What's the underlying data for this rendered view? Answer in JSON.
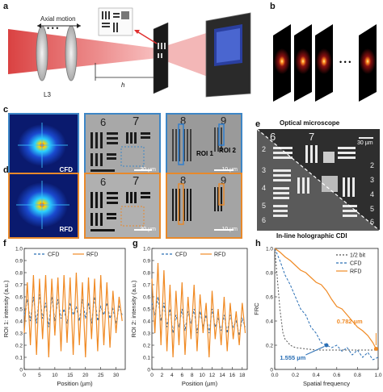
{
  "panels": {
    "a": "a",
    "b": "b",
    "c": "c",
    "d": "d",
    "e": "e",
    "f": "f",
    "g": "g",
    "h": "h"
  },
  "panel_a": {
    "axial_motion": "Axial motion",
    "lens": "L3",
    "h_label": "h"
  },
  "panel_b": {
    "ellipsis": "• • •"
  },
  "panel_c": {
    "label": "CFD",
    "group_6": "6",
    "group_7": "7",
    "group_8": "8",
    "group_9": "9",
    "roi1": "ROI 1",
    "roi2": "ROI 2",
    "scale": "30 µm",
    "scale2": "10 µm"
  },
  "panel_d": {
    "label": "RFD",
    "group_6": "6",
    "group_7": "7",
    "group_8": "8",
    "group_9": "9",
    "scale": "30 µm",
    "scale2": "10 µm"
  },
  "panel_e": {
    "top_title": "Optical microscope",
    "bottom_title": "In-line holographic CDI",
    "scale": "30 µm",
    "g6": "6",
    "g7": "7",
    "n2": "2",
    "n3": "3",
    "n4": "4",
    "n5": "5",
    "n6": "6",
    "r2": "2",
    "r3": "3",
    "r4": "4",
    "r5": "5",
    "r6": "6"
  },
  "chart_data": [
    {
      "type": "line",
      "panel": "f",
      "xlabel": "Position (µm)",
      "ylabel": "ROI 1: intensity (a.u.)",
      "xlim": [
        0,
        33
      ],
      "ylim": [
        0,
        1.0
      ],
      "xticks": [
        "0",
        "5",
        "10",
        "15",
        "20",
        "25",
        "30"
      ],
      "yticks": [
        "0",
        "0.1",
        "0.2",
        "0.3",
        "0.4",
        "0.5",
        "0.6",
        "0.7",
        "0.8",
        "0.9",
        "1.0"
      ],
      "legend": [
        "CFD",
        "RFD"
      ],
      "series": [
        {
          "name": "CFD",
          "x": [
            0,
            1,
            2,
            3,
            4,
            5,
            6,
            7,
            8,
            9,
            10,
            11,
            12,
            13,
            14,
            15,
            16,
            17,
            18,
            19,
            20,
            21,
            22,
            23,
            24,
            25,
            26,
            27,
            28,
            29,
            30,
            31,
            32
          ],
          "values": [
            0.45,
            0.58,
            0.4,
            0.6,
            0.38,
            0.62,
            0.42,
            0.55,
            0.35,
            0.6,
            0.4,
            0.58,
            0.42,
            0.5,
            0.38,
            0.55,
            0.45,
            0.52,
            0.4,
            0.58,
            0.42,
            0.55,
            0.38,
            0.6,
            0.4,
            0.52,
            0.45,
            0.55,
            0.42,
            0.5,
            0.38,
            0.52,
            0.45
          ]
        },
        {
          "name": "RFD",
          "x": [
            0,
            1,
            2,
            3,
            4,
            5,
            6,
            7,
            8,
            9,
            10,
            11,
            12,
            13,
            14,
            15,
            16,
            17,
            18,
            19,
            20,
            21,
            22,
            23,
            24,
            25,
            26,
            27,
            28,
            29,
            30,
            31,
            32
          ],
          "values": [
            0.3,
            0.72,
            0.2,
            0.78,
            0.12,
            0.75,
            0.25,
            0.78,
            0.1,
            0.75,
            0.28,
            0.76,
            0.15,
            0.78,
            0.22,
            0.76,
            0.12,
            0.8,
            0.2,
            0.72,
            0.1,
            0.76,
            0.25,
            0.75,
            0.15,
            0.78,
            0.2,
            0.72,
            0.18,
            0.65,
            0.3,
            0.6,
            0.4
          ]
        }
      ]
    },
    {
      "type": "line",
      "panel": "g",
      "xlabel": "Position (µm)",
      "ylabel": "ROI 2: intensity (a.u.)",
      "xlim": [
        0,
        19
      ],
      "ylim": [
        0,
        1.0
      ],
      "xticks": [
        "0",
        "2",
        "4",
        "6",
        "8",
        "10",
        "12",
        "14",
        "16",
        "18"
      ],
      "yticks": [
        "0",
        "0.1",
        "0.2",
        "0.3",
        "0.4",
        "0.5",
        "0.6",
        "0.7",
        "0.8",
        "0.9",
        "1.0"
      ],
      "legend": [
        "CFD",
        "RFD"
      ],
      "series": [
        {
          "name": "CFD",
          "x": [
            0,
            0.6,
            1.2,
            1.8,
            2.4,
            3,
            3.6,
            4.2,
            4.8,
            5.4,
            6,
            6.6,
            7.2,
            7.8,
            8.4,
            9,
            9.6,
            10.2,
            10.8,
            11.4,
            12,
            12.6,
            13.2,
            13.8,
            14.4,
            15,
            15.6,
            16.2,
            16.8,
            17.4,
            18,
            18.6
          ],
          "values": [
            0.55,
            0.45,
            0.6,
            0.4,
            0.55,
            0.35,
            0.5,
            0.3,
            0.45,
            0.35,
            0.5,
            0.32,
            0.48,
            0.38,
            0.5,
            0.3,
            0.48,
            0.35,
            0.45,
            0.3,
            0.5,
            0.35,
            0.42,
            0.32,
            0.45,
            0.3,
            0.45,
            0.35,
            0.4,
            0.28,
            0.42,
            0.35
          ]
        },
        {
          "name": "RFD",
          "x": [
            0,
            0.6,
            1.2,
            1.8,
            2.4,
            3,
            3.6,
            4.2,
            4.8,
            5.4,
            6,
            6.6,
            7.2,
            7.8,
            8.4,
            9,
            9.6,
            10.2,
            10.8,
            11.4,
            12,
            12.6,
            13.2,
            13.8,
            14.4,
            15,
            15.6,
            16.2,
            16.8,
            17.4,
            18,
            18.6
          ],
          "values": [
            0.75,
            0.3,
            0.88,
            0.2,
            0.82,
            0.15,
            0.7,
            0.1,
            0.65,
            0.2,
            0.72,
            0.12,
            0.6,
            0.25,
            0.7,
            0.15,
            0.62,
            0.3,
            0.55,
            0.1,
            0.65,
            0.25,
            0.5,
            0.2,
            0.6,
            0.15,
            0.55,
            0.25,
            0.48,
            0.2,
            0.55,
            0.3
          ]
        }
      ]
    },
    {
      "type": "line",
      "panel": "h",
      "xlabel": "Spatial frequency",
      "ylabel": "FRC",
      "xlim": [
        0,
        1.0
      ],
      "ylim": [
        0,
        1.0
      ],
      "xticks": [
        "0.0",
        "0.2",
        "0.4",
        "0.6",
        "0.8",
        "1.0"
      ],
      "yticks": [
        "0",
        "0.2",
        "0.4",
        "0.6",
        "0.8",
        "1.0"
      ],
      "legend": [
        "1/2 bit",
        "CFD",
        "RFD"
      ],
      "annotations": [
        "0.782 µm",
        "1.555 µm"
      ],
      "series": [
        {
          "name": "1/2 bit",
          "x": [
            0,
            0.02,
            0.05,
            0.08,
            0.1,
            0.15,
            0.2,
            0.3,
            0.4,
            0.5,
            0.6,
            0.7,
            0.8,
            0.9,
            1.0
          ],
          "values": [
            1.0,
            0.8,
            0.5,
            0.3,
            0.25,
            0.2,
            0.18,
            0.17,
            0.16,
            0.16,
            0.16,
            0.16,
            0.16,
            0.16,
            0.16
          ]
        },
        {
          "name": "CFD",
          "x": [
            0,
            0.05,
            0.1,
            0.15,
            0.2,
            0.25,
            0.3,
            0.35,
            0.4,
            0.45,
            0.5,
            0.55,
            0.6,
            0.65,
            0.7,
            0.75,
            0.8,
            0.85,
            0.9,
            0.95,
            1.0
          ],
          "values": [
            1.0,
            0.9,
            0.78,
            0.7,
            0.6,
            0.5,
            0.45,
            0.35,
            0.3,
            0.22,
            0.2,
            0.18,
            0.2,
            0.15,
            0.18,
            0.12,
            0.16,
            0.1,
            0.14,
            0.08,
            0.1
          ]
        },
        {
          "name": "RFD",
          "x": [
            0,
            0.05,
            0.1,
            0.15,
            0.2,
            0.25,
            0.3,
            0.35,
            0.4,
            0.45,
            0.5,
            0.55,
            0.6,
            0.65,
            0.7,
            0.75,
            0.8,
            0.85,
            0.9,
            0.95,
            0.98
          ],
          "values": [
            1.0,
            0.97,
            0.93,
            0.9,
            0.86,
            0.82,
            0.8,
            0.76,
            0.72,
            0.7,
            0.65,
            0.58,
            0.52,
            0.5,
            0.45,
            0.4,
            0.35,
            0.32,
            0.28,
            0.22,
            0.17
          ]
        }
      ]
    }
  ]
}
